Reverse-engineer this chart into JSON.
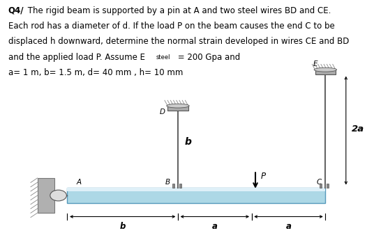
{
  "bg_color": "#ffffff",
  "text_color": "#000000",
  "beam_color": "#add8e6",
  "beam_top_color": "#c8eaf5",
  "beam_edge_color": "#5599bb",
  "wire_color": "#666666",
  "wall_color": "#b0b0b0",
  "cap_color": "#c8c8c8",
  "dim_color": "#000000",
  "label_A": "A",
  "label_B": "B",
  "label_C": "C",
  "label_D": "D",
  "label_E": "E",
  "label_P": "P",
  "label_b_wire": "b",
  "label_2a": "2a",
  "label_b_dim": "b",
  "label_a1": "a",
  "label_a2": "a",
  "q4_bold": "Q4/",
  "line1": " The rigid beam is supported by a pin at A and two steel wires BD and CE.",
  "line2": "Each rod has a diameter of d. If the load P on the beam causes the end C to be",
  "line3": "displaced h downward, determine the normal strain developed in wires CE and BD",
  "line4_pre": "and the applied load P. Assume E",
  "line4_sub": "steel",
  "line4_post": " = 200 Gpa and",
  "params": "a= 1 m, b= 1.5 m, d= 40 mm , h= 10 mm",
  "fontsize_text": 8.5,
  "fontsize_sub": 6.0,
  "fontsize_label": 7.5,
  "fontsize_dim": 8.5
}
